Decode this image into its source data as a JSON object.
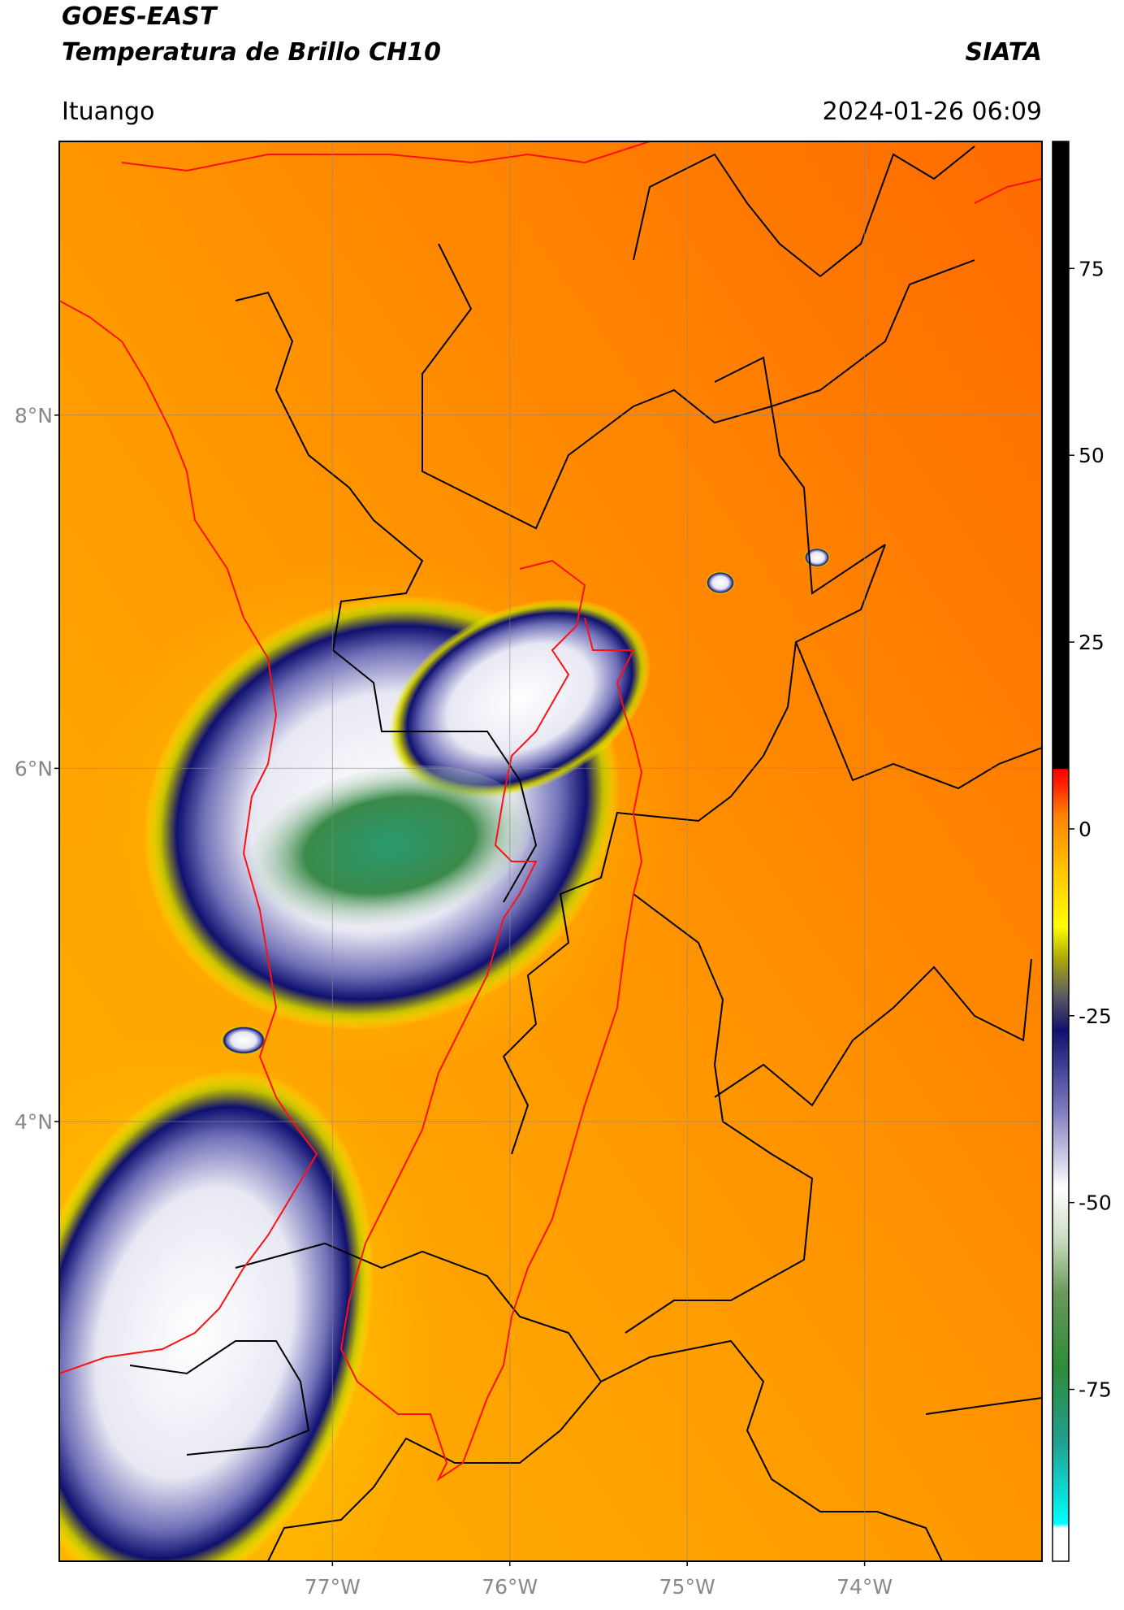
{
  "header": {
    "satellite": "GOES-EAST",
    "product": "Temperatura de Brillo CH10",
    "institution": "SIATA",
    "location": "Ituango",
    "datetime": "2024-01-26 06:09"
  },
  "map": {
    "lonlim": [
      -78.54,
      -73.0
    ],
    "latlim": [
      1.51,
      9.55
    ],
    "grid": true,
    "lonticks": [
      {
        "value": -77,
        "label": "77°W"
      },
      {
        "value": -76,
        "label": "76°W"
      },
      {
        "value": -75,
        "label": "75°W"
      },
      {
        "value": -74,
        "label": "74°W"
      }
    ],
    "latticks": [
      {
        "value": 8,
        "label": "8°N"
      },
      {
        "value": 6,
        "label": "6°N"
      },
      {
        "value": 4,
        "label": "4°N"
      }
    ]
  },
  "colorbar": {
    "lim": [
      -98,
      92
    ],
    "ticks": [
      75,
      50,
      25,
      0,
      -25,
      -50,
      -75
    ],
    "stops": [
      {
        "value": -98,
        "color": "#ffffff"
      },
      {
        "value": -93.5,
        "color": "#ffffff"
      },
      {
        "value": -93,
        "color": "#00ffff"
      },
      {
        "value": -82,
        "color": "#20a090"
      },
      {
        "value": -72,
        "color": "#2e8b3a"
      },
      {
        "value": -62,
        "color": "#6a9a5a"
      },
      {
        "value": -55,
        "color": "#c8dcc0"
      },
      {
        "value": -48,
        "color": "#ffffff"
      },
      {
        "value": -38,
        "color": "#8080c0"
      },
      {
        "value": -27,
        "color": "#101070"
      },
      {
        "value": -22,
        "color": "#606060"
      },
      {
        "value": -17,
        "color": "#b0b000"
      },
      {
        "value": -13,
        "color": "#ffff00"
      },
      {
        "value": -5,
        "color": "#ffc000"
      },
      {
        "value": 2,
        "color": "#ff8000"
      },
      {
        "value": 6,
        "color": "#ff2000"
      },
      {
        "value": 8,
        "color": "#ff0000"
      },
      {
        "value": 8.1,
        "color": "#000000"
      },
      {
        "value": 92,
        "color": "#000000"
      }
    ]
  }
}
